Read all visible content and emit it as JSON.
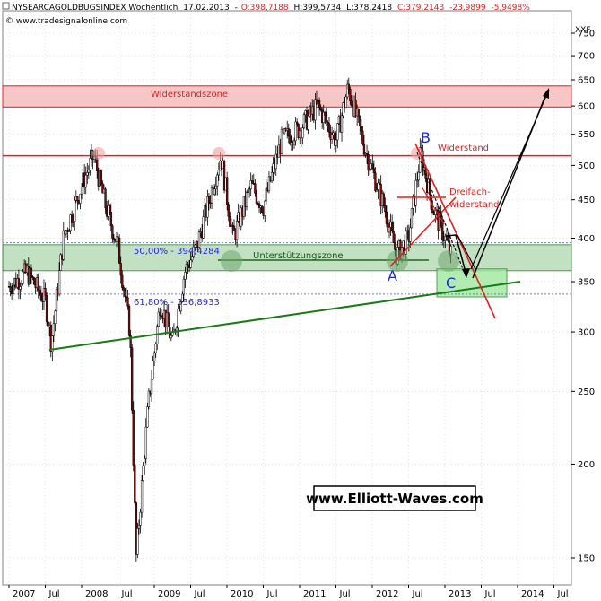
{
  "header": {
    "symbol": "NYSEARCAGOLDBUGSINDEX Wöchentlich",
    "date": "17.02.2013",
    "open": "O:398,7188",
    "high": "H:399,5734",
    "low": "L:378,2418",
    "close": "C:379,2143",
    "change": "-23,9899",
    "change_pct": "-5,9498%",
    "source": "© www.tradesignalonline.com",
    "currency": "XXF"
  },
  "watermark": "www.Elliott-Waves.com",
  "colors": {
    "resistance": "#e02020",
    "support": "#1a7a1a",
    "wave_label": "#1a2bd6",
    "negative": "#e02020",
    "up_candle": "#ffffff",
    "down_candle": "#7a0a0a"
  },
  "annotations": {
    "resistance_zone": "Widerstandszone",
    "resistance": "Widerstand",
    "triple_resistance_1": "Dreifach-",
    "triple_resistance_2": "widerstand",
    "support_zone": "Unterstützungszone",
    "fib_50": "50,00% - 394,4284",
    "fib_618": "61,80% - 336,8933",
    "wave_a": "A",
    "wave_b": "B",
    "wave_c": "C"
  },
  "chart_data": {
    "type": "candlestick",
    "scale": "log",
    "ylim": [
      140,
      780
    ],
    "y_ticks": [
      150,
      200,
      250,
      300,
      350,
      400,
      450,
      500,
      550,
      600,
      650,
      700,
      750
    ],
    "x_ticks": [
      "2007",
      "Jul",
      "2008",
      "Jul",
      "2009",
      "Jul",
      "2010",
      "Jul",
      "2011",
      "Jul",
      "2012",
      "Jul",
      "2013",
      "Jul",
      "2014",
      "Jul"
    ],
    "x_range": [
      "2007-01",
      "2014-10"
    ],
    "resistance_zone": [
      598,
      638
    ],
    "resistance_level": 515,
    "support_zone": [
      362,
      392
    ],
    "fib_50": 394.4284,
    "fib_618": 336.8933,
    "target_zone": [
      334,
      364
    ],
    "series": [
      {
        "date": "2007-01",
        "close": 345
      },
      {
        "date": "2007-04",
        "close": 360
      },
      {
        "date": "2007-07",
        "close": 330
      },
      {
        "date": "2007-08",
        "close": 290
      },
      {
        "date": "2007-10",
        "close": 400
      },
      {
        "date": "2008-01",
        "close": 470
      },
      {
        "date": "2008-03",
        "close": 515
      },
      {
        "date": "2008-05",
        "close": 440
      },
      {
        "date": "2008-07",
        "close": 390
      },
      {
        "date": "2008-09",
        "close": 300
      },
      {
        "date": "2008-10",
        "close": 150
      },
      {
        "date": "2008-12",
        "close": 240
      },
      {
        "date": "2009-02",
        "close": 330
      },
      {
        "date": "2009-04",
        "close": 290
      },
      {
        "date": "2009-06",
        "close": 360
      },
      {
        "date": "2009-08",
        "close": 390
      },
      {
        "date": "2009-12",
        "close": 515
      },
      {
        "date": "2010-02",
        "close": 400
      },
      {
        "date": "2010-05",
        "close": 470
      },
      {
        "date": "2010-07",
        "close": 440
      },
      {
        "date": "2010-10",
        "close": 540
      },
      {
        "date": "2011-01",
        "close": 560
      },
      {
        "date": "2011-04",
        "close": 600
      },
      {
        "date": "2011-07",
        "close": 540
      },
      {
        "date": "2011-09",
        "close": 635
      },
      {
        "date": "2011-12",
        "close": 520
      },
      {
        "date": "2012-03",
        "close": 440
      },
      {
        "date": "2012-05",
        "close": 380
      },
      {
        "date": "2012-07",
        "close": 400
      },
      {
        "date": "2012-09",
        "close": 520
      },
      {
        "date": "2012-11",
        "close": 440
      },
      {
        "date": "2013-01",
        "close": 400
      },
      {
        "date": "2013-02",
        "close": 379
      }
    ]
  }
}
